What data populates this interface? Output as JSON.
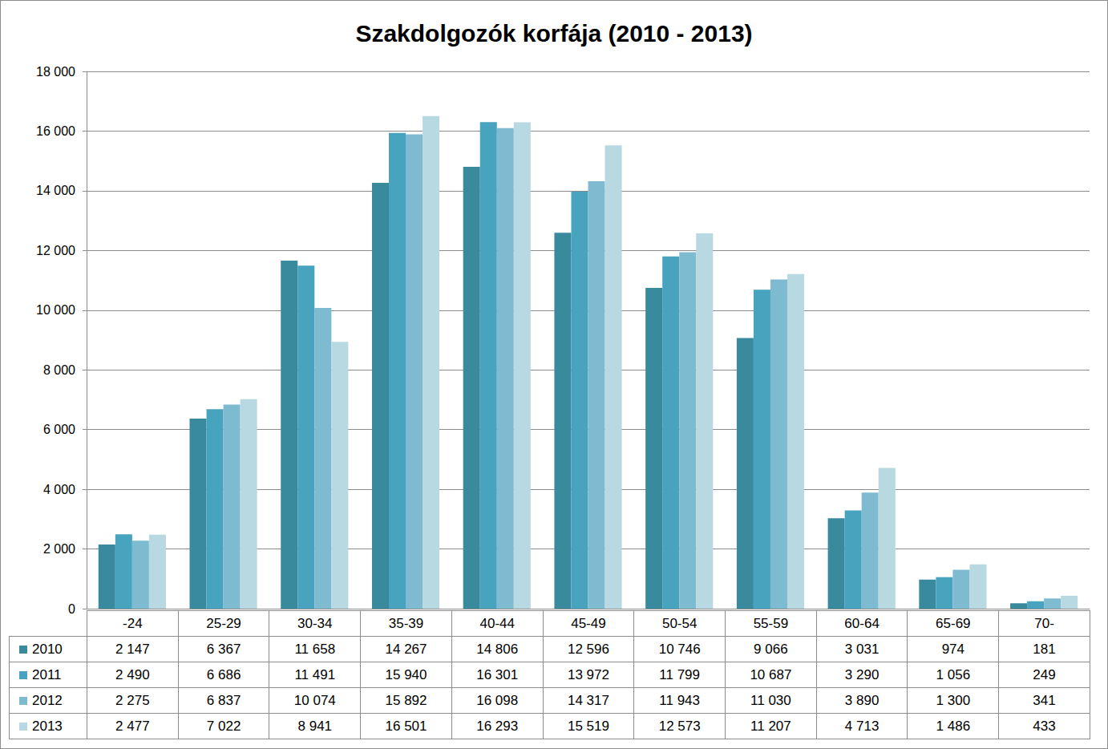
{
  "chart_data": {
    "type": "bar",
    "title": "Szakdolgozók korfája (2010 - 2013)",
    "categories": [
      "-24",
      "25-29",
      "30-34",
      "35-39",
      "40-44",
      "45-49",
      "50-54",
      "55-59",
      "60-64",
      "65-69",
      "70-"
    ],
    "series": [
      {
        "name": "2010",
        "color": "#3a8a9e",
        "values": [
          2147,
          6367,
          11658,
          14267,
          14806,
          12596,
          10746,
          9066,
          3031,
          974,
          181
        ],
        "value_labels": [
          "2 147",
          "6 367",
          "11 658",
          "14 267",
          "14 806",
          "12 596",
          "10 746",
          "9 066",
          "3 031",
          "974",
          "181"
        ]
      },
      {
        "name": "2011",
        "color": "#48a3be",
        "values": [
          2490,
          6686,
          11491,
          15940,
          16301,
          13972,
          11799,
          10687,
          3290,
          1056,
          249
        ],
        "value_labels": [
          "2 490",
          "6 686",
          "11 491",
          "15 940",
          "16 301",
          "13 972",
          "11 799",
          "10 687",
          "3 290",
          "1 056",
          "249"
        ]
      },
      {
        "name": "2012",
        "color": "#7fbbd0",
        "values": [
          2275,
          6837,
          10074,
          15892,
          16098,
          14317,
          11943,
          11030,
          3890,
          1300,
          341
        ],
        "value_labels": [
          "2 275",
          "6 837",
          "10 074",
          "15 892",
          "16 098",
          "14 317",
          "11 943",
          "11 030",
          "3 890",
          "1 300",
          "341"
        ]
      },
      {
        "name": "2013",
        "color": "#b8d8e2",
        "values": [
          2477,
          7022,
          8941,
          16501,
          16293,
          15519,
          12573,
          11207,
          4713,
          1486,
          433
        ],
        "value_labels": [
          "2 477",
          "7 022",
          "8 941",
          "16 501",
          "16 293",
          "15 519",
          "12 573",
          "11 207",
          "4 713",
          "1 486",
          "433"
        ]
      }
    ],
    "ylim": [
      0,
      18000
    ],
    "yticks": [
      0,
      {
        "value": 2000,
        "label": "2 000"
      },
      {
        "value": 4000,
        "label": "4 000"
      },
      {
        "value": 6000,
        "label": "6 000"
      },
      {
        "value": 8000,
        "label": "8 000"
      },
      {
        "value": 10000,
        "label": "10 000"
      },
      {
        "value": 12000,
        "label": "12 000"
      },
      {
        "value": 14000,
        "label": "14 000"
      },
      {
        "value": 16000,
        "label": "16 000"
      },
      {
        "value": 18000,
        "label": "18 000"
      }
    ],
    "grid": true,
    "data_labels": true
  }
}
